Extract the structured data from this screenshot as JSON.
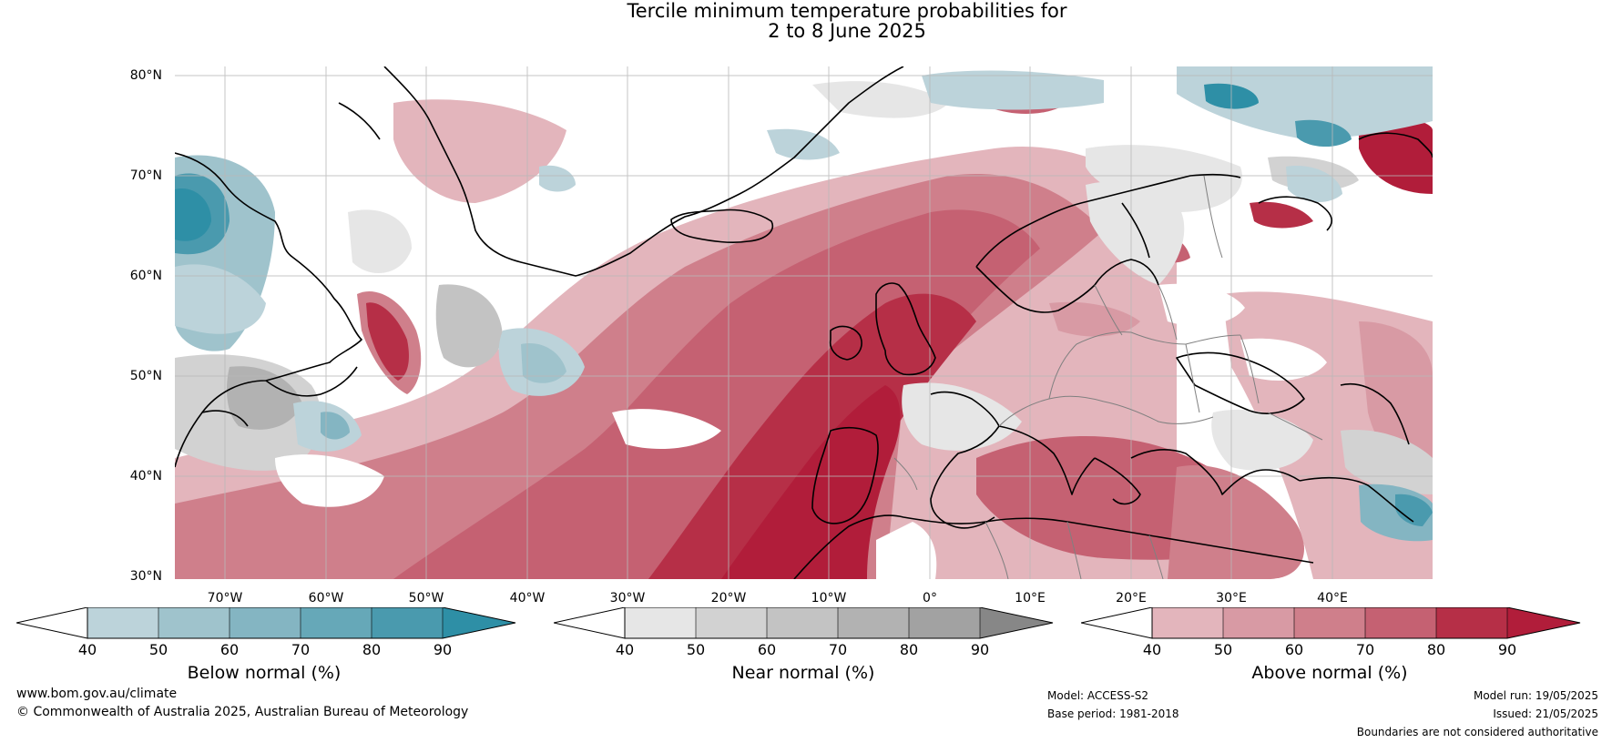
{
  "title": {
    "line1": "Tercile minimum temperature probabilities for",
    "line2": "2 to 8 June 2025"
  },
  "map": {
    "lat_labels": [
      "80°N",
      "70°N",
      "60°N",
      "50°N",
      "40°N",
      "30°N"
    ],
    "lon_labels": [
      "70°W",
      "60°W",
      "50°W",
      "40°W",
      "30°W",
      "20°W",
      "10°W",
      "0°",
      "10°E",
      "20°E",
      "30°E",
      "40°E"
    ],
    "extent": {
      "lon_min": -75,
      "lon_max": 50,
      "lat_min": 30,
      "lat_max": 81
    },
    "colors": {
      "below": [
        "#bcd3da",
        "#9fc3cc",
        "#84b5c2",
        "#66a8b8",
        "#4a9aae",
        "#2e8fa6"
      ],
      "near": [
        "#e6e6e6",
        "#d2d2d2",
        "#c3c3c3",
        "#b2b2b2",
        "#a2a2a2",
        "#878787"
      ],
      "above": [
        "#e3b5bc",
        "#d89aa4",
        "#cf7f8b",
        "#c56172",
        "#b62f47",
        "#b11d3a"
      ],
      "coast": "#000000",
      "borders": "#808080",
      "grid": "#b8b8b8"
    }
  },
  "colorbars": [
    {
      "id": "below",
      "label": "Below normal (%)",
      "ticks": [
        "40",
        "50",
        "60",
        "70",
        "80",
        "90"
      ]
    },
    {
      "id": "near",
      "label": "Near normal (%)",
      "ticks": [
        "40",
        "50",
        "60",
        "70",
        "80",
        "90"
      ]
    },
    {
      "id": "above",
      "label": "Above normal (%)",
      "ticks": [
        "40",
        "50",
        "60",
        "70",
        "80",
        "90"
      ]
    }
  ],
  "footer": {
    "url": "www.bom.gov.au/climate",
    "copyright": "© Commonwealth of Australia 2025, Australian Bureau of Meteorology",
    "model": "Model: ACCESS-S2",
    "base_period": "Base period: 1981-2018",
    "model_run": "Model run: 19/05/2025",
    "issued": "Issued: 21/05/2025",
    "disclaimer": "Boundaries are not considered authoritative"
  }
}
